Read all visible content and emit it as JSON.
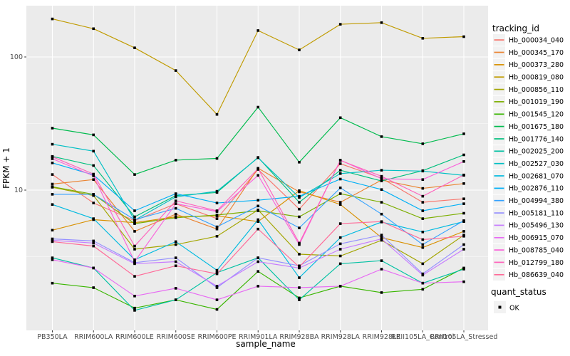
{
  "figure": {
    "background": "#FFFFFF",
    "panel_background": "#EBEBEB",
    "grid_major_color": "#FFFFFF",
    "tick_label_color": "#4D4D4D",
    "point_color": "#000000"
  },
  "legend": {
    "tracking_title": "tracking_id",
    "quant_title": "quant_status",
    "quant_items": [
      {
        "label": "OK",
        "shape": "black-square"
      }
    ],
    "key_background": "#F2F2F2"
  },
  "chart_data": {
    "type": "line",
    "title": "",
    "xlabel": "sample_name",
    "ylabel": "FPKM + 1",
    "y_scale": "log10",
    "ylim": [
      0.88,
      243
    ],
    "y_ticks": [
      10,
      100
    ],
    "y_tick_labels": [
      "10",
      "100"
    ],
    "y_minor_ticks": [
      3.162,
      31.62
    ],
    "grid": true,
    "legend_position": "right",
    "point_marker": "small-black-square",
    "categories": [
      "PB350LA",
      "RRIM600LA",
      "RRIM600LE",
      "RRIM600SE",
      "RRIM600PE",
      "RRIM901LA",
      "RRIM928BA",
      "RRIM928LA",
      "RRIM928LE",
      "RRII105LA_Control",
      "RRII105LA_Stressed"
    ],
    "series": [
      {
        "name": "Hb_000034_040",
        "color": "#F8766D",
        "values": [
          13.1,
          8.0,
          5.9,
          7.9,
          6.1,
          14.3,
          7.2,
          15.8,
          12.3,
          8.1,
          8.6
        ]
      },
      {
        "name": "Hb_000345_170",
        "color": "#EA8331",
        "values": [
          11.1,
          12.0,
          4.9,
          6.6,
          5.1,
          14.6,
          9.7,
          8.1,
          11.9,
          10.3,
          11.2
        ]
      },
      {
        "name": "Hb_000373_280",
        "color": "#D89000",
        "values": [
          5.0,
          6.0,
          5.7,
          6.3,
          6.4,
          5.8,
          9.9,
          7.8,
          4.4,
          3.7,
          4.9
        ]
      },
      {
        "name": "Hb_000819_080",
        "color": "#C09B00",
        "values": [
          193,
          163,
          117,
          79,
          37,
          158,
          113,
          176,
          181,
          138,
          142
        ]
      },
      {
        "name": "Hb_000856_110",
        "color": "#A3A500",
        "values": [
          10.5,
          9.1,
          3.6,
          3.9,
          4.5,
          7.1,
          3.3,
          3.2,
          4.2,
          2.8,
          4.6
        ]
      },
      {
        "name": "Hb_001019_190",
        "color": "#7CAE00",
        "values": [
          10.6,
          9.3,
          5.6,
          6.2,
          6.5,
          7.0,
          6.3,
          9.4,
          8.1,
          6.1,
          6.7
        ]
      },
      {
        "name": "Hb_001545_120",
        "color": "#39B600",
        "values": [
          2.0,
          1.85,
          1.3,
          1.5,
          1.27,
          2.45,
          1.55,
          1.9,
          1.7,
          1.8,
          2.6
        ]
      },
      {
        "name": "Hb_001675_180",
        "color": "#00BB4E",
        "values": [
          29.2,
          26.0,
          13.1,
          16.8,
          17.3,
          42.0,
          16.2,
          35.0,
          25.2,
          22.3,
          26.5
        ]
      },
      {
        "name": "Hb_001776_140",
        "color": "#00BF7D",
        "values": [
          17.9,
          15.3,
          6.3,
          9.1,
          9.6,
          17.6,
          8.1,
          14.1,
          11.7,
          14.0,
          18.4
        ]
      },
      {
        "name": "Hb_002025_200",
        "color": "#00C1A3",
        "values": [
          3.1,
          2.6,
          1.25,
          1.5,
          2.4,
          3.1,
          1.5,
          2.8,
          2.95,
          2.0,
          2.55
        ]
      },
      {
        "name": "Hb_002527_030",
        "color": "#00BFC4",
        "values": [
          22.1,
          19.6,
          5.95,
          8.9,
          9.8,
          17.5,
          8.8,
          13.3,
          14.1,
          13.9,
          12.9
        ]
      },
      {
        "name": "Hb_002681_070",
        "color": "#00BAE0",
        "values": [
          7.8,
          6.1,
          3.0,
          4.1,
          2.5,
          6.0,
          2.2,
          4.4,
          5.75,
          4.85,
          5.8
        ]
      },
      {
        "name": "Hb_002876_110",
        "color": "#00B0F6",
        "values": [
          16.0,
          13.0,
          7.0,
          9.4,
          8.0,
          8.4,
          9.0,
          12.1,
          10.1,
          7.0,
          7.9
        ]
      },
      {
        "name": "Hb_004994_380",
        "color": "#35A2FF",
        "values": [
          9.3,
          9.3,
          6.0,
          7.3,
          5.3,
          7.6,
          5.2,
          10.4,
          6.6,
          3.9,
          5.9
        ]
      },
      {
        "name": "Hb_005181_110",
        "color": "#9590FF",
        "values": [
          4.3,
          4.15,
          2.85,
          3.1,
          1.85,
          3.1,
          2.7,
          3.95,
          4.6,
          2.35,
          3.9
        ]
      },
      {
        "name": "Hb_005496_130",
        "color": "#C77CFF",
        "values": [
          4.2,
          4.0,
          2.8,
          2.9,
          1.9,
          2.9,
          2.6,
          3.6,
          4.3,
          2.3,
          3.6
        ]
      },
      {
        "name": "Hb_006915_070",
        "color": "#E76BF3",
        "values": [
          3.0,
          2.6,
          1.6,
          1.83,
          1.5,
          1.9,
          1.85,
          1.9,
          2.55,
          2.0,
          2.05
        ]
      },
      {
        "name": "Hb_008785_040",
        "color": "#FA62DB",
        "values": [
          17.2,
          12.8,
          2.9,
          7.9,
          6.9,
          12.9,
          3.9,
          16.8,
          12.2,
          12.0,
          16.4
        ]
      },
      {
        "name": "Hb_012799_180",
        "color": "#FF62BC",
        "values": [
          17.8,
          13.2,
          3.8,
          8.3,
          7.0,
          14.5,
          4.0,
          16.7,
          12.7,
          9.0,
          13.0
        ]
      },
      {
        "name": "Hb_086639_040",
        "color": "#FF6A98",
        "values": [
          4.1,
          3.8,
          2.25,
          2.7,
          2.35,
          5.1,
          2.65,
          5.6,
          5.8,
          4.25,
          4.5
        ]
      }
    ]
  }
}
